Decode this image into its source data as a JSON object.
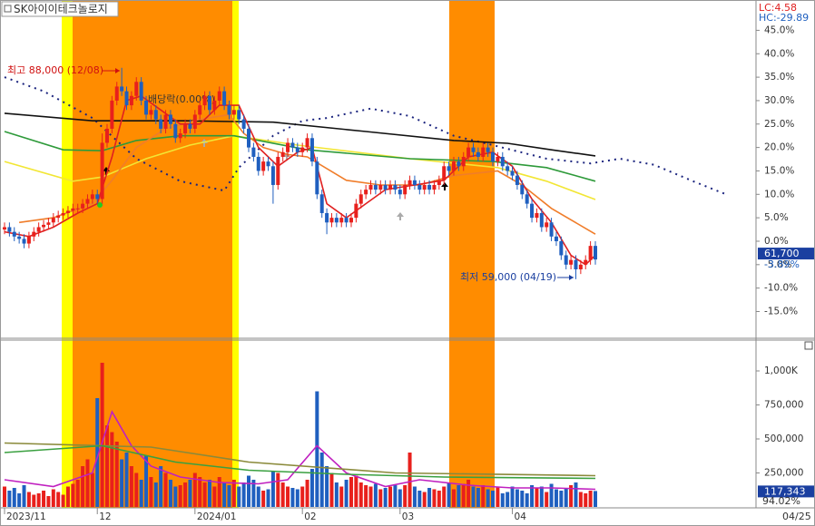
{
  "chart_data": [
    {
      "type": "candlestick",
      "title": "SK아이이테크놀로지",
      "up_color": "#e8201c",
      "down_color": "#1f5fbf",
      "xlim": [
        -0.93,
        153.9
      ],
      "ylim": [
        -21,
        50.5
      ],
      "yticks": [
        {
          "value": 45,
          "label": "45.0%"
        },
        {
          "value": 40,
          "label": "40.0%"
        },
        {
          "value": 35,
          "label": "35.0%"
        },
        {
          "value": 30,
          "label": "30.0%"
        },
        {
          "value": 25,
          "label": "25.0%"
        },
        {
          "value": 20,
          "label": "20.0%"
        },
        {
          "value": 15,
          "label": "15.0%"
        },
        {
          "value": 10,
          "label": "10.0%"
        },
        {
          "value": 5,
          "label": "5.0%"
        },
        {
          "value": 0,
          "label": "0.0%"
        },
        {
          "value": -5,
          "label": "-5.0%"
        },
        {
          "value": -10,
          "label": "-10.0%"
        },
        {
          "value": -15,
          "label": "-15.0%"
        }
      ],
      "header": {
        "lc": "LC:4.58",
        "hc": "HC:-29.89"
      },
      "last_marker": {
        "value": -3.89,
        "price_label": "61,700",
        "pct_label": "-3.89%"
      },
      "annotations": [
        "최고 88,000 (12/08)",
        "최저 59,000 (04/19)",
        "배당락(0.00%)"
      ],
      "candles": [
        [
          2.5,
          4,
          1.5,
          3
        ],
        [
          3,
          4,
          1,
          2
        ],
        [
          2,
          3,
          0,
          1
        ],
        [
          1,
          2,
          -0.5,
          0.5
        ],
        [
          0.5,
          1.5,
          -1.5,
          -0.5
        ],
        [
          -0.5,
          2,
          -1.5,
          1
        ],
        [
          1,
          3,
          0,
          2
        ],
        [
          2,
          4,
          1,
          3
        ],
        [
          3,
          4.5,
          2,
          3.5
        ],
        [
          3.5,
          5,
          2.5,
          4
        ],
        [
          4,
          6,
          3,
          5
        ],
        [
          5,
          6.5,
          4,
          5.5
        ],
        [
          5.5,
          7,
          4.5,
          6
        ],
        [
          6,
          7.5,
          5,
          6.5
        ],
        [
          6.5,
          8,
          5.5,
          7
        ],
        [
          7,
          8,
          6,
          7
        ],
        [
          7,
          9,
          6,
          8
        ],
        [
          8,
          10,
          7,
          9
        ],
        [
          9,
          11,
          8,
          10
        ],
        [
          10,
          11,
          8,
          9
        ],
        [
          9,
          23,
          8,
          21
        ],
        [
          21,
          25,
          20,
          24
        ],
        [
          24,
          31,
          23,
          30
        ],
        [
          30,
          34,
          29,
          33
        ],
        [
          33,
          37,
          31,
          32
        ],
        [
          32,
          33,
          28,
          29
        ],
        [
          29,
          32,
          28,
          31
        ],
        [
          31,
          35,
          30,
          34
        ],
        [
          34,
          35,
          29,
          30
        ],
        [
          30,
          31,
          26,
          27
        ],
        [
          27,
          29,
          26,
          28
        ],
        [
          28,
          29,
          25,
          26
        ],
        [
          26,
          27,
          23,
          24
        ],
        [
          24,
          28,
          23,
          27
        ],
        [
          27,
          28,
          24,
          25
        ],
        [
          25,
          26,
          21,
          22
        ],
        [
          22,
          24,
          21,
          23
        ],
        [
          23,
          26,
          22,
          25
        ],
        [
          25,
          26,
          23,
          24
        ],
        [
          24,
          28,
          23,
          27
        ],
        [
          27,
          30,
          26,
          29
        ],
        [
          29,
          32,
          28,
          31
        ],
        [
          31,
          32,
          27,
          28
        ],
        [
          28,
          31,
          27,
          30
        ],
        [
          30,
          33,
          29,
          32
        ],
        [
          32,
          33,
          28,
          29
        ],
        [
          29,
          30,
          26,
          27
        ],
        [
          27,
          29,
          26,
          28
        ],
        [
          28,
          29,
          25,
          26
        ],
        [
          26,
          27,
          23,
          24
        ],
        [
          24,
          25,
          19,
          20
        ],
        [
          20,
          21,
          17,
          18
        ],
        [
          18,
          19,
          14,
          15
        ],
        [
          15,
          18,
          14,
          17
        ],
        [
          17,
          18,
          15,
          16
        ],
        [
          16,
          17,
          8,
          12
        ],
        [
          12,
          19,
          11,
          18
        ],
        [
          18,
          20,
          17,
          19
        ],
        [
          19,
          22,
          18,
          21
        ],
        [
          21,
          22,
          19,
          20
        ],
        [
          20,
          21,
          18,
          19
        ],
        [
          19,
          21,
          18,
          20
        ],
        [
          20,
          23,
          19,
          22
        ],
        [
          22,
          23,
          16,
          17
        ],
        [
          17,
          18,
          9,
          10
        ],
        [
          10,
          11,
          5,
          6
        ],
        [
          6,
          7,
          1.5,
          4
        ],
        [
          4,
          6,
          3,
          5
        ],
        [
          5,
          6,
          3,
          4
        ],
        [
          4,
          6,
          3,
          5
        ],
        [
          5,
          6,
          3,
          4
        ],
        [
          4,
          6,
          3,
          5
        ],
        [
          5,
          9,
          4,
          8
        ],
        [
          8,
          11,
          7,
          10
        ],
        [
          10,
          12,
          9,
          11
        ],
        [
          11,
          13,
          10,
          12
        ],
        [
          12,
          13,
          10,
          11
        ],
        [
          11,
          13,
          10,
          12
        ],
        [
          12,
          13,
          10,
          11
        ],
        [
          11,
          13,
          10,
          12
        ],
        [
          12,
          13,
          10,
          11
        ],
        [
          11,
          12,
          9,
          10
        ],
        [
          10,
          13,
          9,
          12
        ],
        [
          12,
          14,
          11,
          13
        ],
        [
          13,
          14,
          11,
          12
        ],
        [
          12,
          13,
          10,
          11
        ],
        [
          11,
          13,
          10,
          12
        ],
        [
          12,
          13,
          10,
          11
        ],
        [
          11,
          13,
          10,
          12
        ],
        [
          12,
          14,
          11,
          13
        ],
        [
          13,
          17,
          12,
          16
        ],
        [
          16,
          17,
          14,
          15
        ],
        [
          15,
          18,
          14,
          17
        ],
        [
          17,
          18,
          15,
          16
        ],
        [
          16,
          19,
          15,
          18
        ],
        [
          18,
          21,
          17,
          20
        ],
        [
          20,
          21,
          18,
          19
        ],
        [
          19,
          20,
          17,
          18
        ],
        [
          18,
          21,
          17,
          20
        ],
        [
          20,
          21,
          18,
          19
        ],
        [
          19,
          20,
          16,
          17
        ],
        [
          17,
          19,
          16,
          18
        ],
        [
          18,
          19,
          15,
          16
        ],
        [
          16,
          17,
          14,
          15
        ],
        [
          15,
          16,
          13,
          14
        ],
        [
          14,
          15,
          11,
          12
        ],
        [
          12,
          13,
          9,
          10
        ],
        [
          10,
          11,
          7,
          8
        ],
        [
          8,
          9,
          4,
          5
        ],
        [
          5,
          7,
          4,
          6
        ],
        [
          6,
          7,
          2,
          3
        ],
        [
          3,
          5,
          2,
          4
        ],
        [
          4,
          5,
          0,
          1
        ],
        [
          1,
          2,
          -1,
          0
        ],
        [
          0,
          1,
          -4,
          -3
        ],
        [
          -3,
          -2,
          -6,
          -5
        ],
        [
          -5,
          -3,
          -6,
          -4
        ],
        [
          -4,
          -3,
          -8.1,
          -6
        ],
        [
          -6,
          -4,
          -7,
          -5
        ],
        [
          -5,
          -3,
          -6,
          -4
        ],
        [
          -4,
          0,
          -5,
          -1
        ],
        [
          -1,
          0,
          -5,
          -3.9
        ]
      ],
      "series": [
        {
          "color": "#1a237e",
          "dashed": true,
          "x": [
            0,
            8,
            18,
            27,
            36,
            45,
            48,
            55,
            61,
            66,
            75,
            83,
            92,
            100,
            111,
            120,
            126,
            133,
            141,
            148
          ],
          "values": [
            35,
            32,
            26.3,
            17.6,
            12.8,
            10.8,
            15.7,
            22.5,
            25.7,
            26.3,
            28.3,
            26.7,
            22.5,
            20.5,
            17.6,
            16.6,
            17.6,
            16.3,
            12.8,
            9.9
          ]
        },
        {
          "color": "#111111",
          "x": [
            0,
            18,
            37,
            55,
            74,
            92,
            103,
            112,
            121
          ],
          "values": [
            27.3,
            25.7,
            25.7,
            25.4,
            23.4,
            21.5,
            20.9,
            19.5,
            18.2
          ]
        },
        {
          "color": "#f2e634",
          "x": [
            0,
            14,
            20,
            29,
            38,
            47,
            60,
            83,
            101,
            111,
            121
          ],
          "values": [
            17,
            12.8,
            13.7,
            17.6,
            20.5,
            22.5,
            20.5,
            17.6,
            15.7,
            12.8,
            8.9
          ]
        },
        {
          "color": "#2e9a3a",
          "x": [
            0,
            12,
            20,
            27,
            36,
            47,
            62,
            83,
            100,
            111,
            121
          ],
          "values": [
            23.4,
            19.5,
            19.3,
            21.5,
            22.5,
            22.5,
            19.5,
            17.6,
            17,
            15.7,
            12.8
          ]
        },
        {
          "color": "#f07d2a",
          "x": [
            3,
            10,
            18,
            22,
            27,
            33,
            40,
            46,
            49,
            53,
            58,
            62,
            70,
            77,
            85,
            92,
            101,
            106,
            112,
            121
          ],
          "values": [
            4,
            5,
            8,
            13,
            20,
            24,
            26,
            27,
            23,
            20,
            18.5,
            18,
            13,
            12,
            12,
            14,
            15,
            12,
            7,
            1.5
          ]
        },
        {
          "color": "#e02020",
          "x": [
            0,
            5,
            10,
            15,
            19,
            22,
            25,
            28,
            32,
            36,
            40,
            44,
            48,
            52,
            56,
            60,
            63,
            66,
            70,
            74,
            78,
            84,
            90,
            95,
            100,
            104,
            108,
            112,
            116,
            119,
            121
          ],
          "values": [
            2,
            1,
            3,
            6,
            8,
            18,
            30,
            31,
            28,
            25,
            25,
            29,
            29,
            20,
            16,
            19,
            20,
            8,
            5,
            8,
            11,
            12,
            13,
            18,
            19,
            16,
            9,
            4,
            -3,
            -5,
            -3
          ]
        }
      ]
    },
    {
      "type": "bar",
      "xlim": [
        -0.93,
        153.9
      ],
      "ylim": [
        0,
        1250000
      ],
      "yticks": [
        {
          "value": 1000000,
          "label": "1,000K"
        },
        {
          "value": 750000,
          "label": "750,000"
        },
        {
          "value": 500000,
          "label": "500,000"
        },
        {
          "value": 250000,
          "label": "250,000"
        }
      ],
      "xticks": [
        {
          "value": 0,
          "label": "2023/11"
        },
        {
          "value": 19,
          "label": "12"
        },
        {
          "value": 39,
          "label": "2024/01"
        },
        {
          "value": 61,
          "label": "02"
        },
        {
          "value": 81,
          "label": "03"
        },
        {
          "value": 104,
          "label": "04"
        }
      ],
      "cursor_date": "04/25",
      "last_label": "117,343",
      "ratio_label": "94.02%",
      "values": [
        150000,
        120000,
        140000,
        100000,
        160000,
        110000,
        90000,
        100000,
        120000,
        80000,
        130000,
        110000,
        90000,
        150000,
        170000,
        200000,
        300000,
        350000,
        250000,
        800000,
        1060000,
        600000,
        550000,
        480000,
        350000,
        400000,
        300000,
        250000,
        200000,
        380000,
        220000,
        180000,
        300000,
        250000,
        200000,
        150000,
        160000,
        180000,
        200000,
        250000,
        220000,
        180000,
        200000,
        150000,
        220000,
        180000,
        160000,
        200000,
        150000,
        180000,
        230000,
        200000,
        150000,
        120000,
        130000,
        260000,
        250000,
        180000,
        150000,
        140000,
        130000,
        150000,
        200000,
        280000,
        850000,
        400000,
        300000,
        250000,
        180000,
        150000,
        200000,
        220000,
        230000,
        180000,
        160000,
        150000,
        170000,
        130000,
        140000,
        150000,
        160000,
        130000,
        160000,
        400000,
        150000,
        120000,
        110000,
        140000,
        130000,
        120000,
        150000,
        180000,
        130000,
        160000,
        170000,
        200000,
        150000,
        140000,
        160000,
        130000,
        120000,
        150000,
        100000,
        110000,
        150000,
        130000,
        120000,
        100000,
        160000,
        140000,
        150000,
        110000,
        170000,
        130000,
        120000,
        140000,
        160000,
        180000,
        110000,
        100000,
        120000,
        117343
      ],
      "series": [
        {
          "color": "#c020c0",
          "x": [
            0,
            10,
            18,
            22,
            26,
            30,
            36,
            44,
            52,
            58,
            64,
            70,
            78,
            85,
            95,
            104,
            112,
            121
          ],
          "values": [
            200000,
            150000,
            250000,
            700000,
            450000,
            300000,
            220000,
            180000,
            170000,
            200000,
            450000,
            250000,
            150000,
            200000,
            160000,
            140000,
            140000,
            130000
          ]
        },
        {
          "color": "#8a8a3a",
          "x": [
            0,
            30,
            50,
            80,
            121
          ],
          "values": [
            470000,
            440000,
            330000,
            250000,
            230000
          ]
        },
        {
          "color": "#3aa040",
          "x": [
            0,
            20,
            35,
            50,
            70,
            90,
            121
          ],
          "values": [
            400000,
            450000,
            330000,
            270000,
            240000,
            220000,
            210000
          ]
        }
      ]
    }
  ]
}
